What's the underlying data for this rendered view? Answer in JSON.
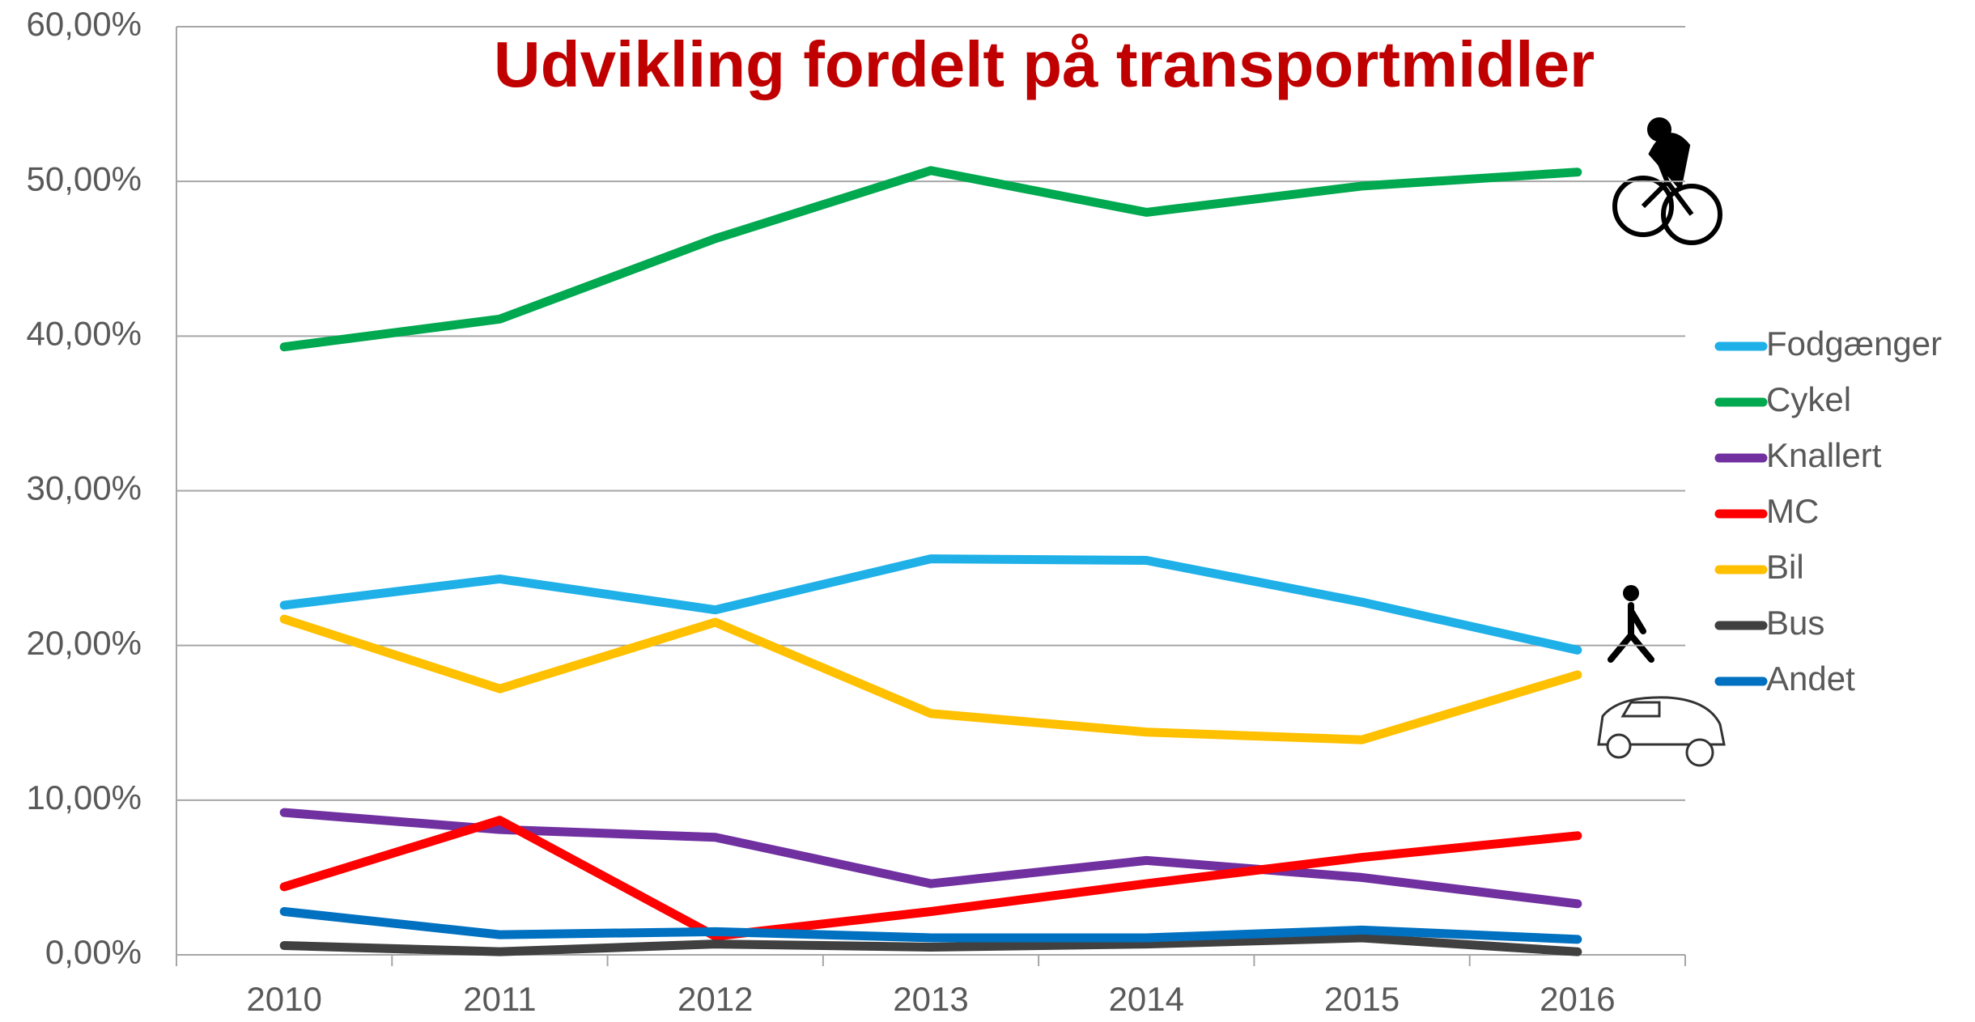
{
  "chart_data": {
    "type": "line",
    "title": "Udvikling fordelt på transportmidler",
    "categories": [
      "2010",
      "2011",
      "2012",
      "2013",
      "2014",
      "2015",
      "2016"
    ],
    "series": [
      {
        "name": "Fodgænger",
        "color": "#1fb0e8",
        "values": [
          22.6,
          24.3,
          22.3,
          25.6,
          25.5,
          22.8,
          19.7
        ]
      },
      {
        "name": "Cykel",
        "color": "#00a84f",
        "values": [
          39.3,
          41.1,
          46.3,
          50.7,
          48.0,
          49.7,
          50.6
        ]
      },
      {
        "name": "Knallert",
        "color": "#7030a0",
        "values": [
          9.2,
          8.1,
          7.6,
          4.6,
          6.1,
          5.0,
          3.3
        ]
      },
      {
        "name": "MC",
        "color": "#ff0000",
        "values": [
          4.4,
          8.7,
          1.2,
          2.8,
          4.6,
          6.3,
          7.7
        ]
      },
      {
        "name": "Bil",
        "color": "#ffc000",
        "values": [
          21.7,
          17.2,
          21.5,
          15.6,
          14.4,
          13.9,
          18.1
        ]
      },
      {
        "name": "Bus",
        "color": "#404040",
        "values": [
          0.6,
          0.2,
          0.7,
          0.5,
          0.7,
          1.1,
          0.2
        ]
      },
      {
        "name": "Andet",
        "color": "#0070c0",
        "values": [
          2.8,
          1.3,
          1.5,
          1.1,
          1.1,
          1.6,
          1.0
        ]
      }
    ],
    "ylim": [
      0,
      60
    ],
    "yticks": [
      {
        "value": 0,
        "label": "0,00%"
      },
      {
        "value": 10,
        "label": "10,00%"
      },
      {
        "value": 20,
        "label": "20,00%"
      },
      {
        "value": 30,
        "label": "30,00%"
      },
      {
        "value": 40,
        "label": "40,00%"
      },
      {
        "value": 50,
        "label": "50,00%"
      },
      {
        "value": 60,
        "label": "60,00%"
      }
    ],
    "grid": true,
    "legend": "right"
  }
}
